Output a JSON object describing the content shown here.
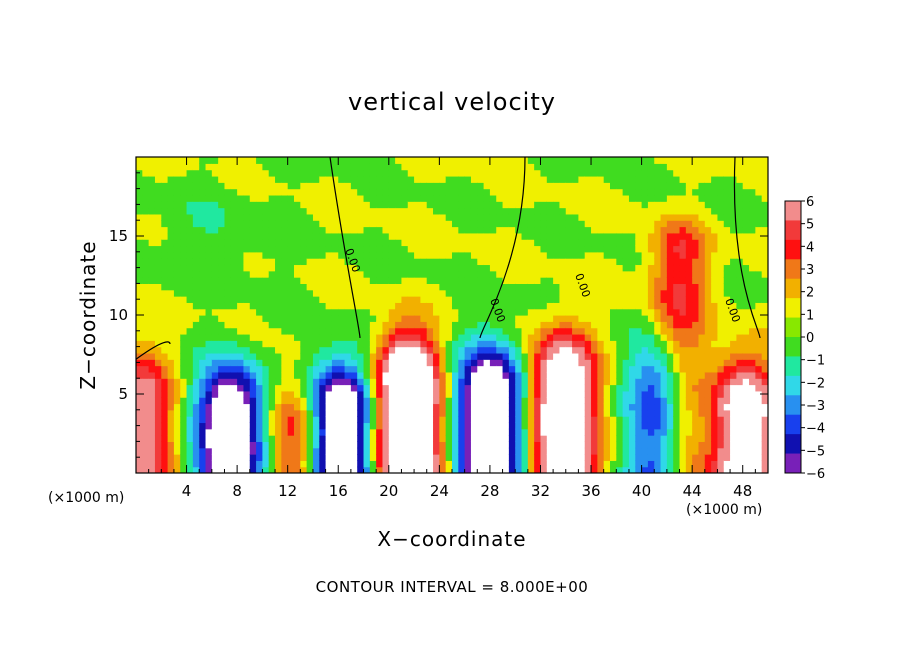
{
  "chart_data": {
    "type": "heatmap",
    "title": "vertical velocity",
    "xlabel": "X−coordinate",
    "ylabel": "Z−coordinate",
    "x_unit_left": "(×1000 m)",
    "x_unit_right": "(×1000 m)",
    "footer": "CONTOUR INTERVAL = 8.000E+00",
    "xlim": [
      0,
      50
    ],
    "ylim": [
      0,
      20
    ],
    "x_ticks": [
      4,
      8,
      12,
      16,
      20,
      24,
      28,
      32,
      36,
      40,
      44,
      48
    ],
    "y_ticks": [
      5,
      10,
      15
    ],
    "colorbar": {
      "ticks": [
        6,
        5,
        4,
        3,
        2,
        1,
        0,
        -1,
        -2,
        -3,
        -4,
        -5,
        -6
      ],
      "tick_labels": [
        "6",
        "5",
        "4",
        "3",
        "2",
        "1",
        "0",
        "−1",
        "−2",
        "−3",
        "−4",
        "−5",
        "−6"
      ],
      "colors": [
        "#f28c8c",
        "#f23a3a",
        "#ff1010",
        "#f07818",
        "#f2b000",
        "#f0f000",
        "#88e800",
        "#40dc20",
        "#20e8a0",
        "#30d8e8",
        "#2890f0",
        "#1840ee",
        "#1010b0",
        "#7820b8"
      ]
    },
    "zero_contour_labels": [
      "0.00",
      "0.00",
      "0.00",
      "0.00"
    ],
    "features": [
      {
        "x": 0.5,
        "z": 4.5,
        "w": 6,
        "kind": "updraft"
      },
      {
        "x": 7.5,
        "z": 3.8,
        "w": -10,
        "kind": "downdraft"
      },
      {
        "x": 12.8,
        "z": 3.0,
        "w": 5,
        "kind": "updraft"
      },
      {
        "x": 16.0,
        "z": 4.0,
        "w": -10,
        "kind": "downdraft"
      },
      {
        "x": 21.5,
        "z": 5.5,
        "w": 14,
        "kind": "updraft"
      },
      {
        "x": 28.0,
        "z": 5.0,
        "w": -10,
        "kind": "downdraft"
      },
      {
        "x": 33.8,
        "z": 5.5,
        "w": 12,
        "kind": "updraft"
      },
      {
        "x": 41.5,
        "z": 5.5,
        "w": -6,
        "kind": "downdraft"
      },
      {
        "x": 43.0,
        "z": 14.0,
        "w": 4,
        "kind": "updraft"
      },
      {
        "x": 48.2,
        "z": 4.0,
        "w": 10,
        "kind": "updraft"
      }
    ]
  }
}
